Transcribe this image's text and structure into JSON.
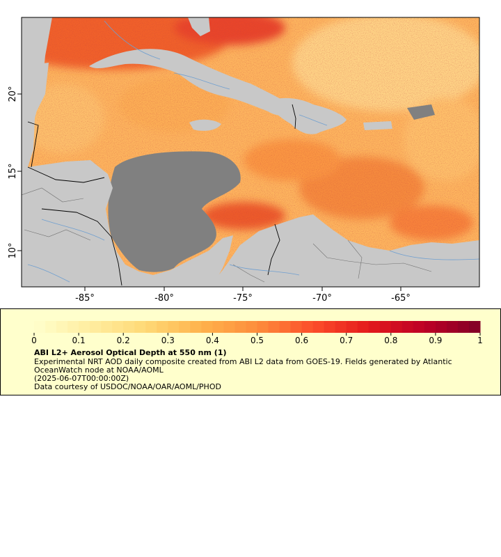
{
  "map": {
    "lon_labels": [
      "-85°",
      "-80°",
      "-75°",
      "-70°",
      "-65°"
    ],
    "lat_labels": [
      "20°",
      "15°",
      "10°"
    ],
    "lon_range": [
      -89,
      -60
    ],
    "lat_range": [
      8,
      25
    ],
    "colors": {
      "land": "#c8c8c8",
      "no_data": "#808080",
      "rivers": "#6f9fd0",
      "borders": "#000000",
      "aod_low": "#ffffcc",
      "aod_high": "#800026"
    }
  },
  "legend": {
    "title": "ABI L2+ Aerosol Optical Depth at 550 nm (1)",
    "description": "Experimental NRT AOD daily composite created from ABI L2 data from GOES-19. Fields generated by Atlantic OceanWatch node at NOAA/AOML",
    "time": "(2025-06-07T00:00:00Z)",
    "credit": "Data courtesy of USDOC/NOAA/OAR/AOML/PHOD",
    "tick_labels": [
      "0",
      "0.1",
      "0.2",
      "0.3",
      "0.4",
      "0.5",
      "0.6",
      "0.7",
      "0.8",
      "0.9",
      "1"
    ],
    "range": [
      0,
      1
    ]
  }
}
